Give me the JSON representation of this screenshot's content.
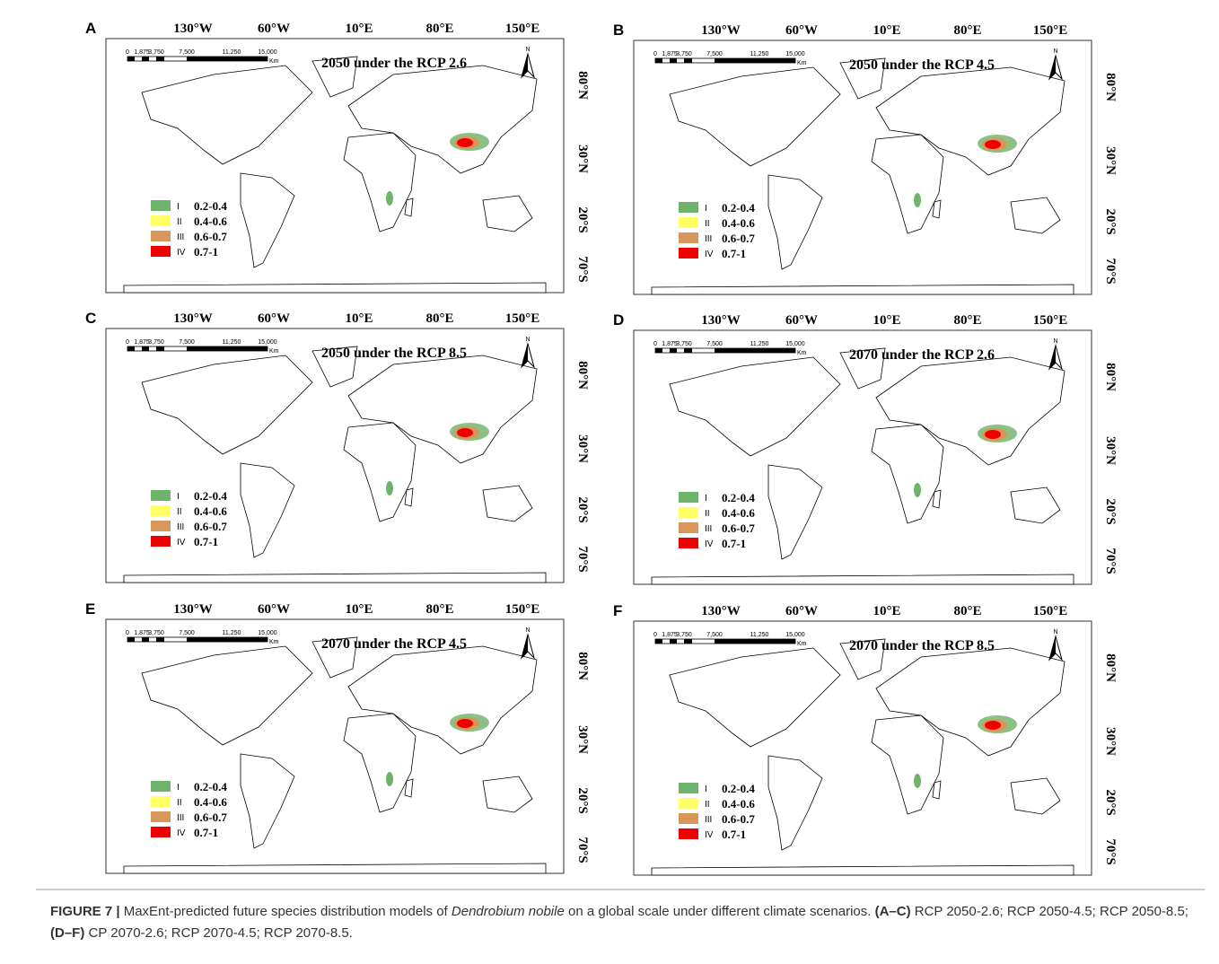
{
  "panels": [
    {
      "letter": "A",
      "title": "2050 under the RCP 2.6"
    },
    {
      "letter": "B",
      "title": "2050 under the RCP 4.5"
    },
    {
      "letter": "C",
      "title": "2050 under the RCP 8.5"
    },
    {
      "letter": "D",
      "title": "2070 under the RCP 2.6"
    },
    {
      "letter": "E",
      "title": "2070 under the RCP 4.5"
    },
    {
      "letter": "F",
      "title": "2070 under the RCP 8.5"
    }
  ],
  "longitude_labels": [
    "130°W",
    "60°W",
    "10°E",
    "80°E",
    "150°E"
  ],
  "latitude_labels": [
    "80°N",
    "30°N",
    "20°S",
    "70°S"
  ],
  "scale_labels": [
    "0",
    "1,875",
    "3,750",
    "7,500",
    "11,250",
    "15,000"
  ],
  "scale_unit": "Km",
  "north": "N",
  "legend": [
    {
      "class": "I",
      "range": "0.2-0.4",
      "color": "#6db36a"
    },
    {
      "class": "II",
      "range": "0.4-0.6",
      "color": "#ffff66"
    },
    {
      "class": "III",
      "range": "0.6-0.7",
      "color": "#d9965a"
    },
    {
      "class": "IV",
      "range": "0.7-1",
      "color": "#ee0000"
    }
  ],
  "caption": {
    "label": "FIGURE 7 |",
    "text1": "MaxEnt-predicted future species distribution models of",
    "species": "Dendrobium nobile",
    "text2": "on a global scale under different climate scenarios.",
    "range1": "(A–C)",
    "text3": "RCP 2050-2.6; RCP 2050-4.5; RCP 2050-8.5;",
    "range2": "(D–F)",
    "text4": "CP 2070-2.6; RCP 2070-4.5; RCP 2070-8.5."
  }
}
